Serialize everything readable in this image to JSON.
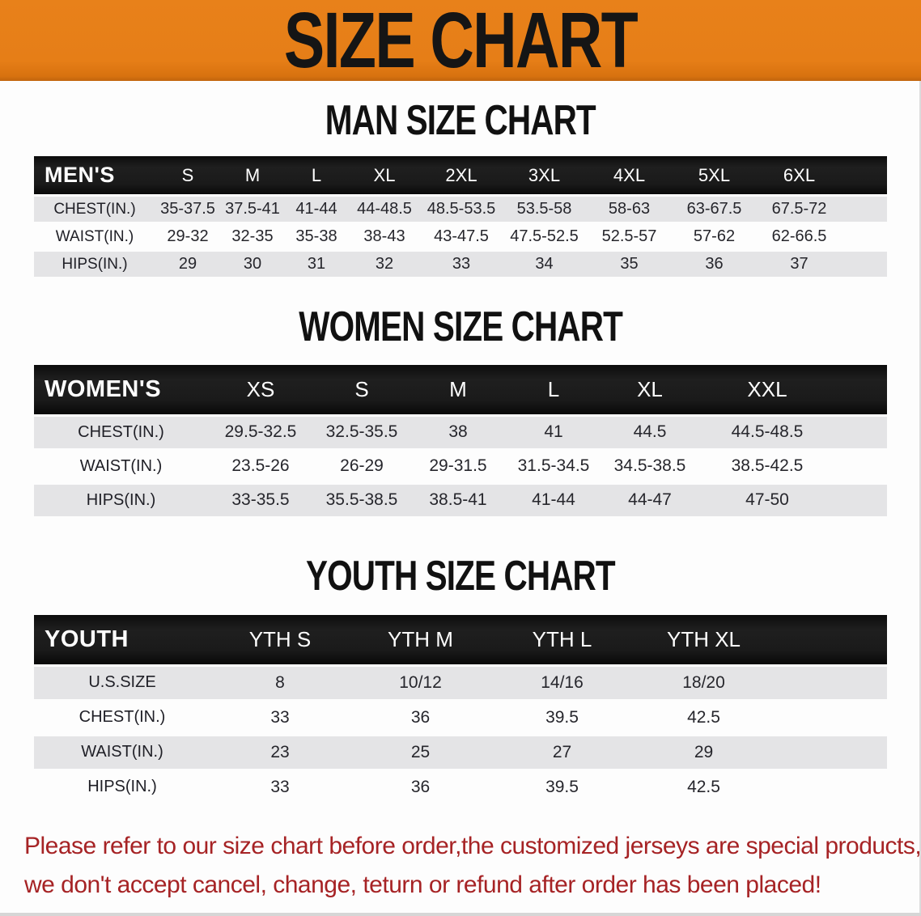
{
  "banner": {
    "title": "SIZE CHART",
    "background": "#e67e17",
    "text_color": "#151515"
  },
  "sections": [
    {
      "title": "MAN SIZE CHART",
      "table": {
        "header_label": "MEN'S",
        "columns": [
          "S",
          "M",
          "L",
          "XL",
          "2XL",
          "3XL",
          "4XL",
          "5XL",
          "6XL"
        ],
        "rows": [
          {
            "label": "CHEST(IN.)",
            "values": [
              "35-37.5",
              "37.5-41",
              "41-44",
              "44-48.5",
              "48.5-53.5",
              "53.5-58",
              "58-63",
              "63-67.5",
              "67.5-72"
            ]
          },
          {
            "label": "WAIST(IN.)",
            "values": [
              "29-32",
              "32-35",
              "35-38",
              "38-43",
              "43-47.5",
              "47.5-52.5",
              "52.5-57",
              "57-62",
              "62-66.5"
            ]
          },
          {
            "label": "HIPS(IN.)",
            "values": [
              "29",
              "30",
              "31",
              "32",
              "33",
              "34",
              "35",
              "36",
              "37"
            ]
          }
        ]
      }
    },
    {
      "title": "WOMEN SIZE CHART",
      "table": {
        "header_label": "WOMEN'S",
        "columns": [
          "XS",
          "S",
          "M",
          "L",
          "XL",
          "XXL"
        ],
        "rows": [
          {
            "label": "CHEST(IN.)",
            "values": [
              "29.5-32.5",
              "32.5-35.5",
              "38",
              "41",
              "44.5",
              "44.5-48.5"
            ]
          },
          {
            "label": "WAIST(IN.)",
            "values": [
              "23.5-26",
              "26-29",
              "29-31.5",
              "31.5-34.5",
              "34.5-38.5",
              "38.5-42.5"
            ]
          },
          {
            "label": "HIPS(IN.)",
            "values": [
              "33-35.5",
              "35.5-38.5",
              "38.5-41",
              "41-44",
              "44-47",
              "47-50"
            ]
          }
        ]
      }
    },
    {
      "title": "YOUTH SIZE CHART",
      "table": {
        "header_label": "YOUTH",
        "columns": [
          "YTH S",
          "YTH M",
          "YTH L",
          "YTH XL"
        ],
        "rows": [
          {
            "label": "U.S.SIZE",
            "values": [
              "8",
              "10/12",
              "14/16",
              "18/20"
            ]
          },
          {
            "label": "CHEST(IN.)",
            "values": [
              "33",
              "36",
              "39.5",
              "42.5"
            ]
          },
          {
            "label": "WAIST(IN.)",
            "values": [
              "23",
              "25",
              "27",
              "29"
            ]
          },
          {
            "label": "HIPS(IN.)",
            "values": [
              "33",
              "36",
              "39.5",
              "42.5"
            ]
          }
        ]
      }
    }
  ],
  "footer": {
    "line1": "Please refer to our size chart before order,the customized jerseys are special products,",
    "line2": "we don't accept cancel, change, teturn or refund after order has been placed!",
    "text_color": "#a62325"
  },
  "colors": {
    "banner_orange": "#e67e17",
    "table_header_black": "#161616",
    "stripe_gray": "#e4e4e6",
    "stripe_white": "#fdfdfd",
    "notice_red": "#a62325"
  }
}
